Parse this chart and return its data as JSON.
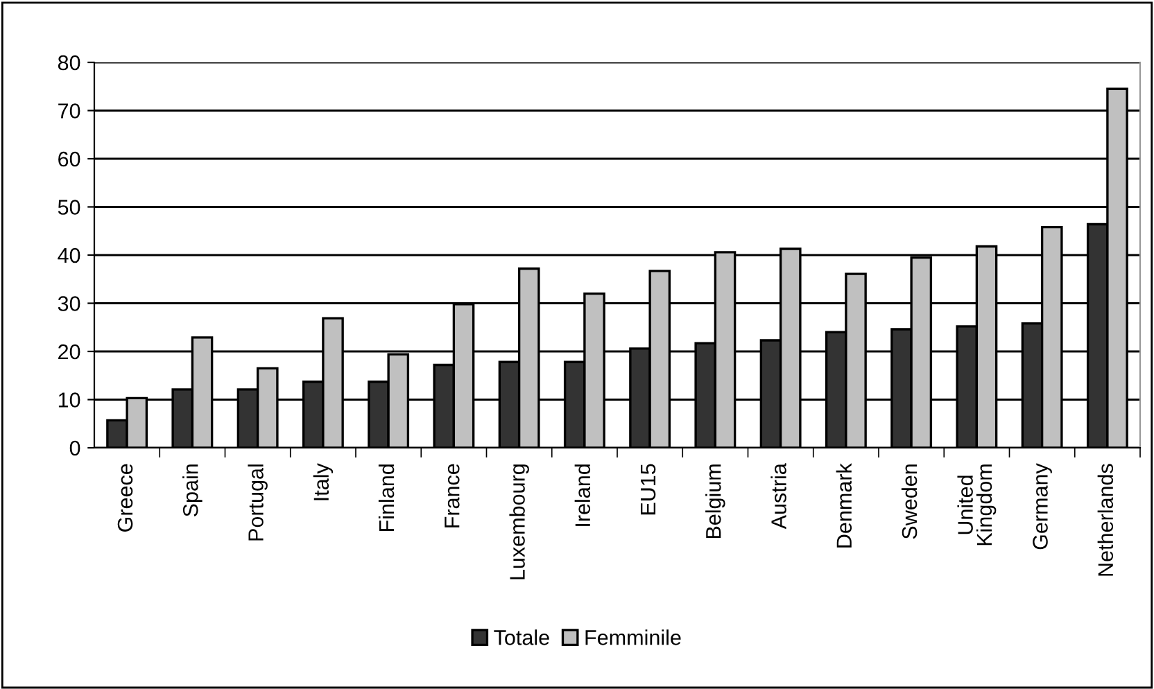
{
  "chart_data": {
    "type": "bar",
    "categories": [
      "Greece",
      "Spain",
      "Portugal",
      "Italy",
      "Finland",
      "France",
      "Luxembourg",
      "Ireland",
      "EU15",
      "Belgium",
      "Austria",
      "Denmark",
      "Sweden",
      "United\nKingdom",
      "Germany",
      "Netherlands"
    ],
    "series": [
      {
        "name": "Totale",
        "color": "#333333",
        "values": [
          5.7,
          12.1,
          12.1,
          13.7,
          13.7,
          17.2,
          17.8,
          17.8,
          20.6,
          21.7,
          22.3,
          24.0,
          24.6,
          25.2,
          25.8,
          46.4
        ]
      },
      {
        "name": "Femminile",
        "color": "#c0c0c0",
        "values": [
          10.3,
          22.9,
          16.5,
          26.9,
          19.4,
          29.8,
          37.2,
          32.0,
          36.7,
          40.6,
          41.3,
          36.1,
          39.5,
          41.8,
          45.8,
          74.5
        ]
      }
    ],
    "ylim": [
      0,
      80
    ],
    "yticks": [
      0,
      10,
      20,
      30,
      40,
      50,
      60,
      70,
      80
    ],
    "grid": "y",
    "legend": "bottom"
  }
}
